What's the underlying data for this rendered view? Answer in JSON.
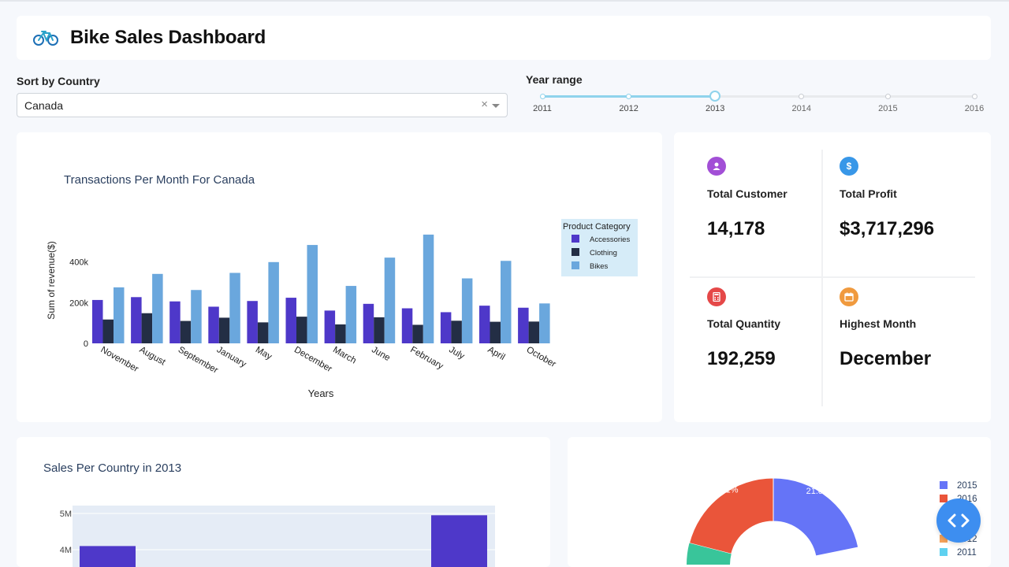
{
  "header": {
    "title": "Bike Sales Dashboard",
    "icon": "bicycle-icon"
  },
  "controls": {
    "country_label": "Sort by Country",
    "country_value": "Canada",
    "clear_symbol": "×",
    "year_label": "Year range",
    "years": [
      "2011",
      "2012",
      "2013",
      "2014",
      "2015",
      "2016"
    ],
    "range_start": "2011",
    "range_end": "2013"
  },
  "chart_data": [
    {
      "type": "bar",
      "title": "Transactions Per Month For Canada",
      "xlabel": "Years",
      "ylabel": "Sum of revenue($)",
      "categories": [
        "November",
        "August",
        "September",
        "January",
        "May",
        "December",
        "March",
        "June",
        "February",
        "July",
        "April",
        "October"
      ],
      "series": [
        {
          "name": "Accessories",
          "color": "#4e38c9",
          "values": [
            213000,
            227000,
            206000,
            180000,
            208000,
            224000,
            161000,
            194000,
            172000,
            153000,
            185000,
            175000
          ]
        },
        {
          "name": "Clothing",
          "color": "#232e45",
          "values": [
            117000,
            148000,
            110000,
            126000,
            103000,
            131000,
            93000,
            128000,
            91000,
            111000,
            106000,
            107000
          ]
        },
        {
          "name": "Bikes",
          "color": "#6aa7dd",
          "values": [
            275000,
            341000,
            262000,
            346000,
            399000,
            483000,
            282000,
            421000,
            534000,
            319000,
            405000,
            196000
          ]
        }
      ],
      "legend_title": "Product Category",
      "legend_position": "right",
      "yticks": [
        {
          "value": 0,
          "label": "0"
        },
        {
          "value": 200000,
          "label": "200k"
        },
        {
          "value": 400000,
          "label": "400k"
        }
      ],
      "ylim": [
        0,
        580000
      ]
    },
    {
      "type": "bar",
      "title": "Sales Per Country in 2013",
      "yticks": [
        {
          "value": 4000000,
          "label": "4M"
        },
        {
          "value": 5000000,
          "label": "5M"
        }
      ],
      "visible_values": [
        4100000,
        4950000
      ],
      "color": "#4e38c9"
    },
    {
      "type": "pie",
      "visible_slices": [
        {
          "label": "2015",
          "percent": 21.8,
          "percent_label": "21.8%",
          "color": "#6574f7"
        },
        {
          "label": "2016",
          "percent": 21,
          "percent_label": "21%",
          "color": "#ea553a"
        }
      ],
      "legend": [
        {
          "label": "2015",
          "color": "#6574f7"
        },
        {
          "label": "2016",
          "color": "#ea553a"
        },
        {
          "label": "2012",
          "color": "#f5a25a"
        },
        {
          "label": "2011",
          "color": "#5fd1f0"
        }
      ]
    }
  ],
  "kpis": [
    {
      "title": "Total Customer",
      "value": "14,178",
      "icon": "user-icon",
      "color": "#a24fd6",
      "glyph": "●"
    },
    {
      "title": "Total Profit",
      "value": "$3,717,296",
      "icon": "dollar-icon",
      "color": "#3897e8",
      "glyph": "$"
    },
    {
      "title": "Total Quantity",
      "value": "192,259",
      "icon": "calculator-icon",
      "color": "#e54848",
      "glyph": "▦"
    },
    {
      "title": "Highest Month",
      "value": "December",
      "icon": "calendar-icon",
      "color": "#f09a3e",
      "glyph": "▣"
    }
  ],
  "fab": {
    "icon": "code-brackets-icon"
  }
}
